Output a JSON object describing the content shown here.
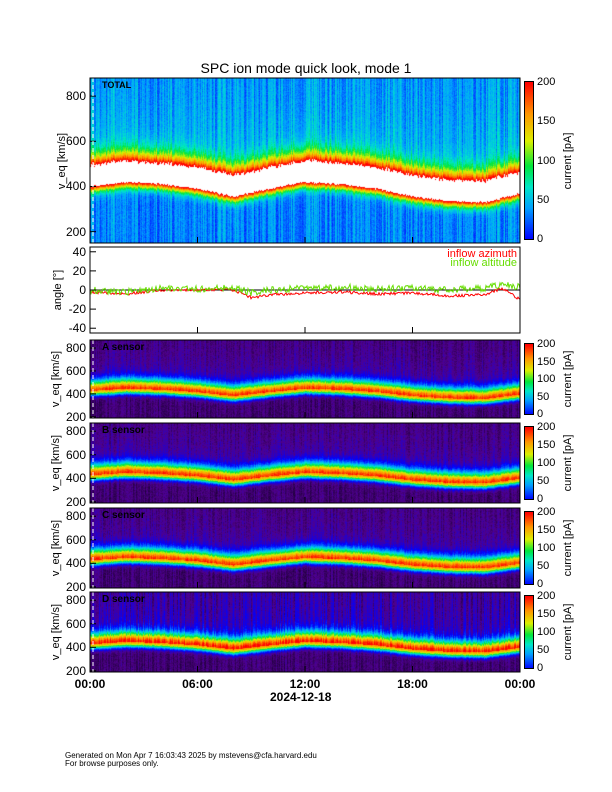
{
  "title": "SPC ion mode quick look, mode 1",
  "footer": {
    "line1": "Generated on Mon Apr  7 16:03:43 2025 by mstevens@cfa.harvard.edu",
    "line2": "For browse purposes only."
  },
  "chart_data": [
    {
      "type": "heatmap",
      "label": "TOTAL",
      "ylabel": "v_eq [km/s]",
      "ylim": [
        150,
        880
      ],
      "yticks": [
        "200",
        "400",
        "600",
        "800"
      ],
      "colorbar": {
        "label": "current [pA]",
        "range": [
          0,
          200
        ],
        "ticks": [
          "0",
          "50",
          "100",
          "150",
          "200"
        ]
      },
      "core_speed_hours": [
        0,
        2,
        4,
        6,
        8,
        10,
        12,
        14,
        16,
        18,
        20,
        22,
        24
      ],
      "core_speed_kms": [
        430,
        450,
        440,
        420,
        385,
        420,
        450,
        440,
        420,
        385,
        365,
        360,
        400
      ]
    },
    {
      "type": "line",
      "ylabel": "angle [°]",
      "ylim": [
        -45,
        45
      ],
      "yticks": [
        "40",
        "20",
        "0",
        "-20",
        "-40"
      ],
      "series": [
        {
          "name": "inflow azimuth",
          "color": "#ff0000",
          "hours": [
            0,
            2,
            4,
            6,
            8,
            9,
            10,
            12,
            14,
            16,
            18,
            20,
            22,
            23,
            24
          ],
          "values": [
            -2,
            -4,
            0,
            0,
            0,
            -8,
            -5,
            -3,
            -2,
            -4,
            -3,
            -6,
            -5,
            2,
            -10
          ]
        },
        {
          "name": "inflow altitude",
          "color": "#66dd00",
          "hours": [
            0,
            2,
            4,
            6,
            8,
            9,
            10,
            12,
            14,
            16,
            18,
            20,
            22,
            23,
            24
          ],
          "values": [
            0,
            -2,
            2,
            1,
            3,
            -3,
            0,
            2,
            3,
            1,
            2,
            0,
            2,
            6,
            3
          ]
        }
      ]
    },
    {
      "type": "heatmap",
      "label": "A sensor",
      "ylabel": "v_eq [km/s]",
      "ylim": [
        190,
        870
      ],
      "yticks": [
        "200",
        "400",
        "600",
        "800"
      ],
      "colorbar": {
        "label": "current [pA]",
        "range": [
          0,
          200
        ],
        "ticks": [
          "0",
          "50",
          "100",
          "150",
          "200"
        ]
      }
    },
    {
      "type": "heatmap",
      "label": "B sensor",
      "ylabel": "v_eq [km/s]",
      "ylim": [
        190,
        870
      ],
      "yticks": [
        "200",
        "400",
        "600",
        "800"
      ],
      "colorbar": {
        "label": "current [pA]",
        "range": [
          0,
          200
        ],
        "ticks": [
          "0",
          "50",
          "100",
          "150",
          "200"
        ]
      }
    },
    {
      "type": "heatmap",
      "label": "C sensor",
      "ylabel": "v_eq [km/s]",
      "ylim": [
        190,
        870
      ],
      "yticks": [
        "200",
        "400",
        "600",
        "800"
      ],
      "colorbar": {
        "label": "current [pA]",
        "range": [
          0,
          200
        ],
        "ticks": [
          "0",
          "50",
          "100",
          "150",
          "200"
        ]
      }
    },
    {
      "type": "heatmap",
      "label": "D sensor",
      "ylabel": "v_eq [km/s]",
      "ylim": [
        190,
        870
      ],
      "yticks": [
        "200",
        "400",
        "600",
        "800"
      ],
      "colorbar": {
        "label": "current [pA]",
        "range": [
          0,
          200
        ],
        "ticks": [
          "0",
          "50",
          "100",
          "150",
          "200"
        ]
      }
    }
  ],
  "xaxis": {
    "ticks": [
      "00:00",
      "06:00",
      "12:00",
      "18:00",
      "00:00"
    ],
    "date": "2024-12-18",
    "range_hours": [
      0,
      24
    ]
  }
}
